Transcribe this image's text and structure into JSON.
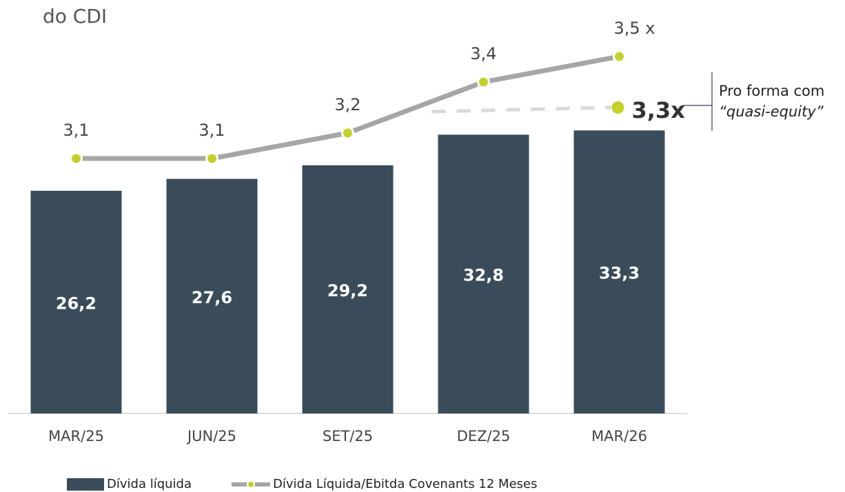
{
  "chart_data": {
    "type": "bar_line",
    "title": "do CDI",
    "categories": [
      "MAR/25",
      "JUN/25",
      "SET/25",
      "DEZ/25",
      "MAR/26"
    ],
    "series": [
      {
        "name": "Dívida líquida",
        "type": "bar",
        "color": "#3a4c59",
        "values": [
          26.2,
          27.6,
          29.2,
          32.8,
          33.3
        ],
        "value_labels": [
          "26,2",
          "27,6",
          "29,2",
          "32,8",
          "33,3"
        ]
      },
      {
        "name": "Dívida Líquida/Ebitda Covenants 12 Meses",
        "type": "line",
        "axis": "y2",
        "color": "#a6a6a6",
        "marker_color": "#c5d12a",
        "values": [
          3.1,
          3.1,
          3.2,
          3.4,
          3.5
        ],
        "value_labels": [
          "3,1",
          "3,1",
          "3,2",
          "3,4",
          "3,5 x"
        ]
      }
    ],
    "pro_forma": {
      "value": 3.3,
      "label": "3,3x"
    },
    "annotation": [
      "Pro forma com",
      "“quasi-equity”"
    ],
    "ylim": [
      0,
      45
    ],
    "y2lim": [
      2.1,
      3.6
    ]
  }
}
